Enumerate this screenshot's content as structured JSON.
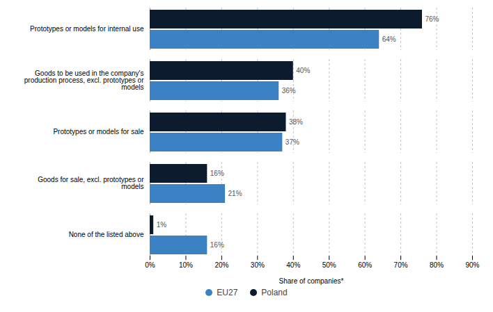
{
  "chart_data": {
    "type": "bar",
    "orientation": "horizontal",
    "categories": [
      "None of the listed above",
      "Goods for sale, excl. prototypes or\nmodels",
      "Prototypes or models for sale",
      "Goods to be used in the company's\nproduction process, excl. prototypes or\nmodels",
      "Prototypes or models for internal use"
    ],
    "series": [
      {
        "name": "EU27",
        "color": "#3b82c4",
        "values": [
          16,
          21,
          37,
          36,
          64
        ],
        "value_labels": [
          "16%",
          "21%",
          "37%",
          "36%",
          "64%"
        ]
      },
      {
        "name": "Poland",
        "color": "#0d1b2e",
        "values": [
          1,
          16,
          38,
          40,
          76
        ],
        "value_labels": [
          "1%",
          "16%",
          "38%",
          "40%",
          "76%"
        ]
      }
    ],
    "xlabel": "Share of companies*",
    "xlim": [
      0,
      90
    ],
    "xticks": [
      {
        "value": 0,
        "label": "0%"
      },
      {
        "value": 10,
        "label": "10%"
      },
      {
        "value": 20,
        "label": "20%"
      },
      {
        "value": 30,
        "label": "30%"
      },
      {
        "value": 40,
        "label": "40%"
      },
      {
        "value": 50,
        "label": "50%"
      },
      {
        "value": 60,
        "label": "60%"
      },
      {
        "value": 70,
        "label": "70%"
      },
      {
        "value": 80,
        "label": "80%"
      },
      {
        "value": 90,
        "label": "90%"
      }
    ],
    "grid": true,
    "data_labels": true,
    "legend": "bottom"
  }
}
